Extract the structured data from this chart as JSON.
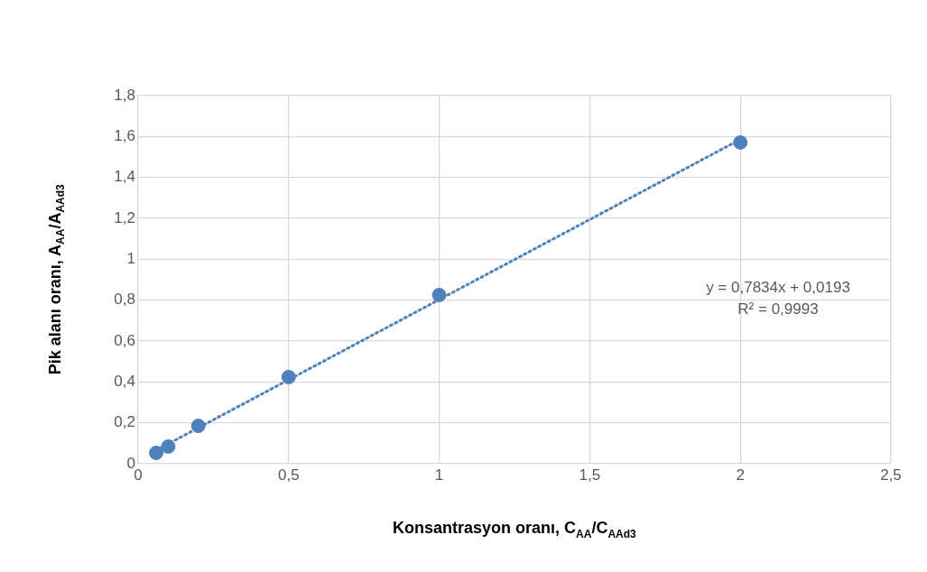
{
  "chart_data": {
    "type": "scatter",
    "xlabel": "Konsantrasyon oranı, C$_{AA}$/C$_{AAd3}$",
    "ylabel": "Pik alanı oranı, A$_{AA}$/A$_{AAd3}$",
    "xlim": [
      0,
      2.5
    ],
    "xticks": [
      0,
      {
        "value": 0.5,
        "label": "0,5"
      },
      1,
      {
        "value": 1.5,
        "label": "1,5"
      },
      2,
      {
        "value": 2.5,
        "label": "2,5"
      }
    ],
    "ylim": [
      0,
      1.8
    ],
    "yticks": [
      0,
      {
        "value": 0.2,
        "label": "0,2"
      },
      {
        "value": 0.4,
        "label": "0,4"
      },
      {
        "value": 0.6,
        "label": "0,6"
      },
      {
        "value": 0.8,
        "label": "0,8"
      },
      1,
      {
        "value": 1.2,
        "label": "1,2"
      },
      {
        "value": 1.4,
        "label": "1,4"
      },
      {
        "value": 1.6,
        "label": "1,6"
      },
      {
        "value": 1.8,
        "label": "1,8"
      }
    ],
    "grid": true,
    "series": [
      {
        "color": "#4f81bd",
        "marker": "circle",
        "x": [
          0.06,
          0.1,
          0.2,
          0.5,
          1,
          2
        ],
        "values": [
          0.053,
          0.084,
          0.185,
          0.424,
          0.825,
          1.571
        ]
      },
      {
        "type": "line",
        "color": "#4f81bd",
        "marker": "none",
        "line_style": "dotted",
        "x": [
          0.06,
          2
        ],
        "values": [
          0.066,
          1.586
        ]
      }
    ],
    "annotations": [
      "y = 0,7834x + 0,0193",
      "R² = 0,9993"
    ]
  }
}
